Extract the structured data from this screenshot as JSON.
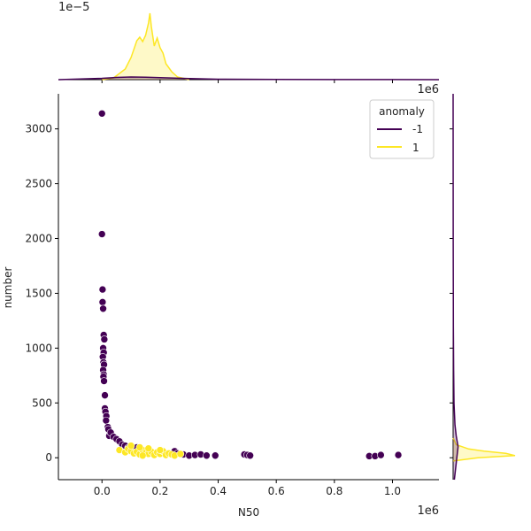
{
  "chart_data": {
    "type": "scatter",
    "xlabel": "N50",
    "ylabel": "number",
    "x_offset_label": "1e6",
    "top_offset_label": "1e6",
    "top_density_exponent_label": "1e−5",
    "xlim": [
      -0.15,
      1.16
    ],
    "ylim": [
      -200,
      3320
    ],
    "x_ticks": [
      0.0,
      0.2,
      0.4,
      0.6,
      0.8,
      1.0
    ],
    "x_tick_labels": [
      "0.0",
      "0.2",
      "0.4",
      "0.6",
      "0.8",
      "1.0"
    ],
    "y_ticks": [
      0,
      500,
      1000,
      1500,
      2000,
      2500,
      3000
    ],
    "y_tick_labels": [
      "0",
      "500",
      "1000",
      "1500",
      "2000",
      "2500",
      "3000"
    ],
    "legend": {
      "title": "anomaly",
      "placement": "top-right",
      "entries": [
        {
          "label": "-1",
          "color": "#440154"
        },
        {
          "label": "1",
          "color": "#fde725"
        }
      ]
    },
    "series": [
      {
        "name": "-1",
        "color": "#440154",
        "points": [
          [
            0.0,
            3140
          ],
          [
            0.0,
            2040
          ],
          [
            0.002,
            1535
          ],
          [
            0.002,
            1420
          ],
          [
            0.004,
            1360
          ],
          [
            0.006,
            1120
          ],
          [
            0.008,
            1080
          ],
          [
            0.004,
            1000
          ],
          [
            0.006,
            960
          ],
          [
            0.003,
            920
          ],
          [
            0.005,
            870
          ],
          [
            0.007,
            850
          ],
          [
            0.004,
            800
          ],
          [
            0.006,
            760
          ],
          [
            0.005,
            740
          ],
          [
            0.007,
            700
          ],
          [
            0.01,
            570
          ],
          [
            0.01,
            450
          ],
          [
            0.012,
            420
          ],
          [
            0.015,
            380
          ],
          [
            0.014,
            340
          ],
          [
            0.02,
            280
          ],
          [
            0.022,
            260
          ],
          [
            0.025,
            200
          ],
          [
            0.03,
            230
          ],
          [
            0.04,
            190
          ],
          [
            0.05,
            170
          ],
          [
            0.06,
            150
          ],
          [
            0.07,
            120
          ],
          [
            0.08,
            110
          ],
          [
            0.09,
            90
          ],
          [
            0.1,
            80
          ],
          [
            0.12,
            95
          ],
          [
            0.15,
            60
          ],
          [
            0.17,
            50
          ],
          [
            0.2,
            40
          ],
          [
            0.22,
            30
          ],
          [
            0.25,
            60
          ],
          [
            0.26,
            40
          ],
          [
            0.28,
            30
          ],
          [
            0.3,
            20
          ],
          [
            0.32,
            25
          ],
          [
            0.34,
            30
          ],
          [
            0.36,
            20
          ],
          [
            0.39,
            20
          ],
          [
            0.49,
            30
          ],
          [
            0.5,
            25
          ],
          [
            0.51,
            20
          ],
          [
            0.92,
            15
          ],
          [
            0.94,
            15
          ],
          [
            0.96,
            25
          ],
          [
            1.02,
            25
          ]
        ]
      },
      {
        "name": "1",
        "color": "#fde725",
        "points": [
          [
            0.06,
            70
          ],
          [
            0.08,
            50
          ],
          [
            0.09,
            80
          ],
          [
            0.1,
            60
          ],
          [
            0.11,
            40
          ],
          [
            0.12,
            55
          ],
          [
            0.13,
            30
          ],
          [
            0.14,
            70
          ],
          [
            0.15,
            45
          ],
          [
            0.16,
            35
          ],
          [
            0.17,
            55
          ],
          [
            0.18,
            25
          ],
          [
            0.19,
            50
          ],
          [
            0.2,
            35
          ],
          [
            0.21,
            60
          ],
          [
            0.22,
            25
          ],
          [
            0.23,
            40
          ],
          [
            0.24,
            30
          ],
          [
            0.25,
            20
          ],
          [
            0.27,
            35
          ],
          [
            0.1,
            110
          ],
          [
            0.13,
            95
          ],
          [
            0.16,
            85
          ],
          [
            0.2,
            70
          ],
          [
            0.14,
            20
          ]
        ]
      }
    ],
    "marginal_top": {
      "series": [
        {
          "name": "1",
          "color": "#fde725",
          "x": [
            0.0,
            0.04,
            0.08,
            0.1,
            0.12,
            0.13,
            0.14,
            0.15,
            0.16,
            0.165,
            0.17,
            0.18,
            0.19,
            0.2,
            0.21,
            0.22,
            0.24,
            0.26,
            0.3
          ],
          "density": [
            0,
            0.2,
            1.2,
            2.5,
            4.4,
            4.8,
            4.3,
            5.0,
            6.4,
            7.5,
            6.0,
            3.8,
            4.7,
            3.6,
            3.0,
            1.8,
            0.9,
            0.3,
            0
          ]
        },
        {
          "name": "-1",
          "color": "#440154",
          "x": [
            -0.15,
            0.0,
            0.05,
            0.1,
            0.15,
            0.2,
            0.3,
            0.4,
            0.6,
            0.8,
            1.0,
            1.16
          ],
          "density": [
            0,
            0.15,
            0.25,
            0.3,
            0.28,
            0.22,
            0.12,
            0.05,
            0.02,
            0.01,
            0.01,
            0
          ]
        }
      ]
    },
    "marginal_right": {
      "series": [
        {
          "name": "1",
          "color": "#fde725",
          "y": [
            -30,
            0,
            20,
            40,
            60,
            80,
            120,
            180
          ],
          "density": [
            0,
            0.4,
            1.0,
            0.85,
            0.5,
            0.25,
            0.05,
            0
          ]
        },
        {
          "name": "-1",
          "color": "#440154",
          "y": [
            -200,
            0,
            100,
            200,
            300,
            500,
            800,
            1200,
            2000,
            3320
          ],
          "density": [
            0.02,
            0.06,
            0.08,
            0.05,
            0.03,
            0.015,
            0.008,
            0.004,
            0.001,
            0
          ]
        }
      ]
    }
  }
}
